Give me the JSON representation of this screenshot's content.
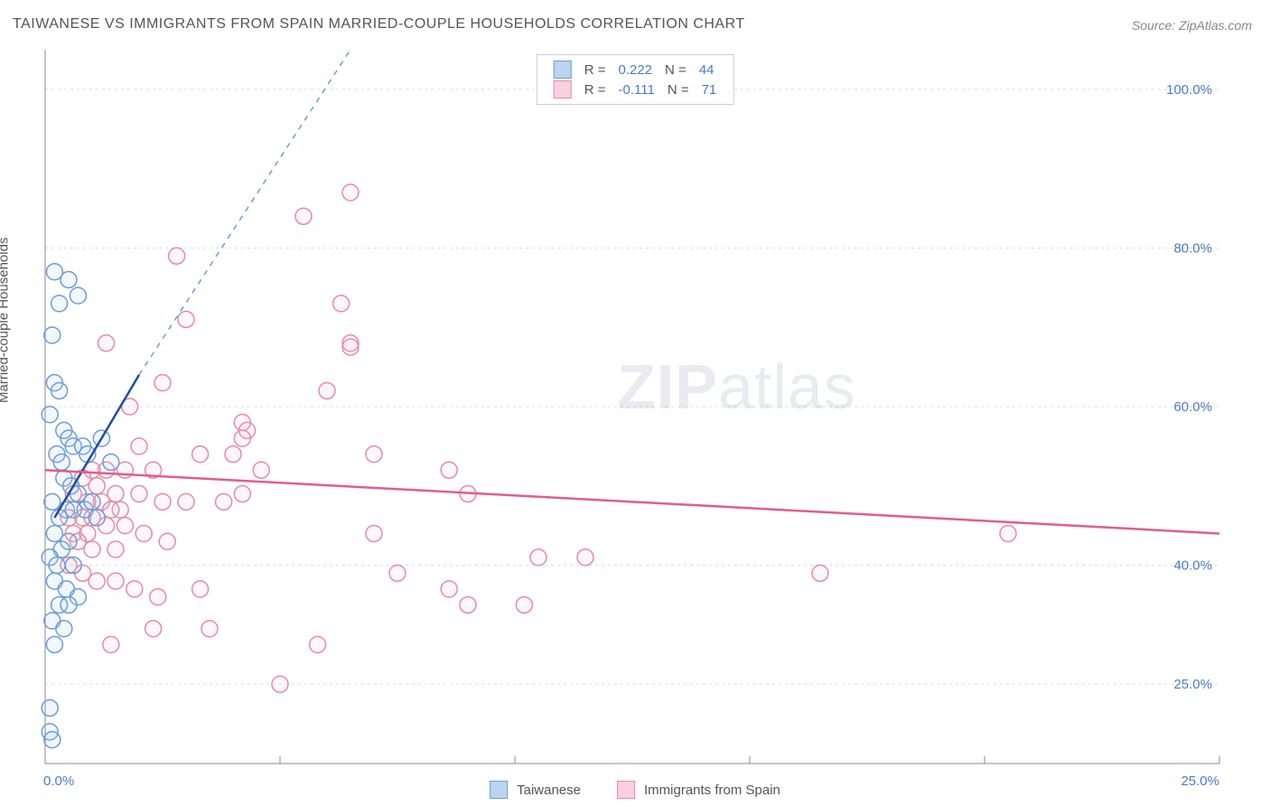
{
  "title": "TAIWANESE VS IMMIGRANTS FROM SPAIN MARRIED-COUPLE HOUSEHOLDS CORRELATION CHART",
  "source_label": "Source:",
  "source_value": "ZipAtlas.com",
  "y_axis_label": "Married-couple Households",
  "watermark_bold": "ZIP",
  "watermark_light": "atlas",
  "chart": {
    "type": "scatter",
    "background_color": "#ffffff",
    "grid_color": "#dddddd",
    "axis_color": "#888888",
    "tick_font_color": "#4a7bc8",
    "tick_fontsize": 15,
    "title_fontsize": 16,
    "title_color": "#555555",
    "label_fontsize": 15,
    "label_color": "#555555",
    "xlim": [
      0,
      25
    ],
    "ylim": [
      15,
      105
    ],
    "y_ticks": [
      25,
      40,
      60,
      80,
      100
    ],
    "y_tick_labels": [
      "25.0%",
      "40.0%",
      "60.0%",
      "80.0%",
      "100.0%"
    ],
    "x_ticks": [
      0,
      5,
      10,
      15,
      20,
      25
    ],
    "x_tick_label_left": "0.0%",
    "x_tick_label_right": "25.0%",
    "marker_radius": 9,
    "marker_stroke_width": 1.5,
    "marker_fill_opacity": 0.15,
    "trend_line_width": 2.5,
    "series": [
      {
        "name": "Taiwanese",
        "color_stroke": "#6a9ed8",
        "color_fill": "#a8c8ea",
        "swatch_fill": "#bcd4f0",
        "swatch_border": "#6a9ed8",
        "R": "0.222",
        "N": "44",
        "trend": {
          "x1": 0.2,
          "y1": 46,
          "x2": 2.0,
          "y2": 64,
          "color": "#1f4e9c",
          "dash": null
        },
        "trend_extend": {
          "x1": 2.0,
          "y1": 64,
          "x2": 6.5,
          "y2": 105,
          "color": "#6a9ed8",
          "dash": "6,6"
        },
        "points": [
          [
            0.2,
            77
          ],
          [
            0.5,
            76
          ],
          [
            0.7,
            74
          ],
          [
            0.3,
            73
          ],
          [
            0.15,
            69
          ],
          [
            0.2,
            63
          ],
          [
            0.3,
            62
          ],
          [
            0.1,
            59
          ],
          [
            0.4,
            57
          ],
          [
            0.5,
            56
          ],
          [
            0.6,
            55
          ],
          [
            0.25,
            54
          ],
          [
            0.35,
            53
          ],
          [
            0.8,
            55
          ],
          [
            0.9,
            54
          ],
          [
            1.2,
            56
          ],
          [
            1.4,
            53
          ],
          [
            0.4,
            51
          ],
          [
            0.55,
            50
          ],
          [
            0.7,
            49
          ],
          [
            0.15,
            48
          ],
          [
            0.45,
            47
          ],
          [
            0.6,
            47
          ],
          [
            0.85,
            47
          ],
          [
            1.0,
            48
          ],
          [
            1.1,
            46
          ],
          [
            0.3,
            46
          ],
          [
            0.2,
            44
          ],
          [
            0.5,
            43
          ],
          [
            0.35,
            42
          ],
          [
            0.1,
            41
          ],
          [
            0.25,
            40
          ],
          [
            0.6,
            40
          ],
          [
            0.2,
            38
          ],
          [
            0.45,
            37
          ],
          [
            0.7,
            36
          ],
          [
            0.3,
            35
          ],
          [
            0.5,
            35
          ],
          [
            0.15,
            33
          ],
          [
            0.4,
            32
          ],
          [
            0.2,
            30
          ],
          [
            0.1,
            22
          ],
          [
            0.1,
            19
          ],
          [
            0.15,
            18
          ]
        ]
      },
      {
        "name": "Immigrants from Spain",
        "color_stroke": "#e68aa8",
        "color_fill": "#f6c0d2",
        "swatch_fill": "#f9d0de",
        "swatch_border": "#e68aa8",
        "R": "-0.111",
        "N": "71",
        "trend": {
          "x1": 0,
          "y1": 52,
          "x2": 25,
          "y2": 44,
          "color": "#e35d8a",
          "dash": null
        },
        "points": [
          [
            6.5,
            87
          ],
          [
            5.5,
            84
          ],
          [
            2.8,
            79
          ],
          [
            3.0,
            71
          ],
          [
            6.3,
            73
          ],
          [
            6.5,
            68
          ],
          [
            6.5,
            67.5
          ],
          [
            1.3,
            68
          ],
          [
            2.5,
            63
          ],
          [
            6.0,
            62
          ],
          [
            1.8,
            60
          ],
          [
            4.2,
            58
          ],
          [
            4.3,
            57
          ],
          [
            4.2,
            56
          ],
          [
            2.0,
            55
          ],
          [
            3.3,
            54
          ],
          [
            4.0,
            54
          ],
          [
            4.6,
            52
          ],
          [
            7.0,
            54
          ],
          [
            8.6,
            52
          ],
          [
            1.0,
            52
          ],
          [
            1.3,
            52
          ],
          [
            1.7,
            52
          ],
          [
            2.3,
            52
          ],
          [
            0.8,
            51
          ],
          [
            1.1,
            50
          ],
          [
            1.5,
            49
          ],
          [
            0.6,
            49
          ],
          [
            0.9,
            48
          ],
          [
            1.2,
            48
          ],
          [
            1.6,
            47
          ],
          [
            2.0,
            49
          ],
          [
            2.5,
            48
          ],
          [
            3.0,
            48
          ],
          [
            3.8,
            48
          ],
          [
            4.2,
            49
          ],
          [
            0.5,
            46
          ],
          [
            0.8,
            46
          ],
          [
            1.0,
            46
          ],
          [
            1.4,
            47
          ],
          [
            0.6,
            44
          ],
          [
            0.9,
            44
          ],
          [
            1.3,
            45
          ],
          [
            1.7,
            45
          ],
          [
            2.1,
            44
          ],
          [
            2.6,
            43
          ],
          [
            0.7,
            43
          ],
          [
            1.0,
            42
          ],
          [
            1.5,
            42
          ],
          [
            9.0,
            49
          ],
          [
            20.5,
            44
          ],
          [
            7.0,
            44
          ],
          [
            10.5,
            41
          ],
          [
            11.5,
            41
          ],
          [
            16.5,
            39
          ],
          [
            7.5,
            39
          ],
          [
            3.3,
            37
          ],
          [
            8.6,
            37
          ],
          [
            9.0,
            35
          ],
          [
            10.2,
            35
          ],
          [
            1.4,
            30
          ],
          [
            5.8,
            30
          ],
          [
            5.0,
            25
          ],
          [
            2.3,
            32
          ],
          [
            3.5,
            32
          ],
          [
            0.5,
            40
          ],
          [
            0.8,
            39
          ],
          [
            1.1,
            38
          ],
          [
            1.5,
            38
          ],
          [
            1.9,
            37
          ],
          [
            2.4,
            36
          ]
        ]
      }
    ]
  },
  "legend_top": {
    "r_label": "R =",
    "n_label": "N ="
  }
}
